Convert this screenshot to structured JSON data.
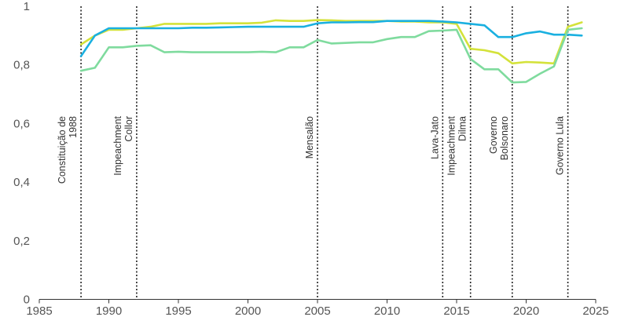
{
  "chart_data": {
    "type": "line",
    "title": "",
    "xlabel": "",
    "ylabel": "",
    "xlim": [
      1985,
      2025
    ],
    "ylim": [
      0,
      1
    ],
    "x_ticks": [
      1985,
      1990,
      1995,
      2000,
      2005,
      2010,
      2015,
      2020,
      2025
    ],
    "y_ticks": [
      0,
      0.2,
      0.4,
      0.6,
      0.8,
      1
    ],
    "x_tick_labels": [
      "1985",
      "1990",
      "1995",
      "2000",
      "2005",
      "2010",
      "2015",
      "2020",
      "2025"
    ],
    "y_tick_labels": [
      "0",
      "0,2",
      "0,4",
      "0,6",
      "0,8",
      "1"
    ],
    "grid": false,
    "legend": "none",
    "events": [
      {
        "x": 1988,
        "label": "Constituição de 1988"
      },
      {
        "x": 1992,
        "label": "Impeachment Collor"
      },
      {
        "x": 2005,
        "label": "Mensalão"
      },
      {
        "x": 2014,
        "label": "Lava-Jato"
      },
      {
        "x": 2016,
        "label": "Impeachment Dilma"
      },
      {
        "x": 2019,
        "label": "Governo Bolsonaro"
      },
      {
        "x": 2023,
        "label": "Governo Lula"
      }
    ],
    "series": [
      {
        "color": "#d4e23a",
        "x": [
          1988,
          1989,
          1990,
          1991,
          1992,
          1993,
          1994,
          1995,
          1996,
          1997,
          1998,
          1999,
          2000,
          2001,
          2002,
          2003,
          2004,
          2005,
          2006,
          2007,
          2008,
          2009,
          2010,
          2011,
          2012,
          2013,
          2014,
          2015,
          2016,
          2017,
          2018,
          2019,
          2020,
          2021,
          2022,
          2023,
          2024
        ],
        "values": [
          0.87,
          0.9,
          0.92,
          0.92,
          0.925,
          0.93,
          0.94,
          0.94,
          0.94,
          0.94,
          0.942,
          0.942,
          0.942,
          0.944,
          0.952,
          0.95,
          0.95,
          0.953,
          0.952,
          0.95,
          0.95,
          0.95,
          0.95,
          0.948,
          0.948,
          0.945,
          0.945,
          0.94,
          0.855,
          0.85,
          0.84,
          0.805,
          0.81,
          0.808,
          0.805,
          0.93,
          0.945
        ]
      },
      {
        "color": "#1ab0e0",
        "x": [
          1988,
          1989,
          1990,
          1991,
          1992,
          1993,
          1994,
          1995,
          1996,
          1997,
          1998,
          1999,
          2000,
          2001,
          2002,
          2003,
          2004,
          2005,
          2006,
          2007,
          2008,
          2009,
          2010,
          2011,
          2012,
          2013,
          2014,
          2015,
          2016,
          2017,
          2018,
          2019,
          2020,
          2021,
          2022,
          2023,
          2024
        ],
        "values": [
          0.83,
          0.9,
          0.925,
          0.925,
          0.925,
          0.925,
          0.925,
          0.925,
          0.927,
          0.927,
          0.928,
          0.929,
          0.93,
          0.93,
          0.93,
          0.93,
          0.93,
          0.942,
          0.945,
          0.945,
          0.946,
          0.946,
          0.95,
          0.95,
          0.95,
          0.95,
          0.948,
          0.945,
          0.94,
          0.935,
          0.895,
          0.895,
          0.908,
          0.914,
          0.903,
          0.903,
          0.9
        ]
      },
      {
        "color": "#7fdb9e",
        "x": [
          1988,
          1989,
          1990,
          1991,
          1992,
          1993,
          1994,
          1995,
          1996,
          1997,
          1998,
          1999,
          2000,
          2001,
          2002,
          2003,
          2004,
          2005,
          2006,
          2007,
          2008,
          2009,
          2010,
          2011,
          2012,
          2013,
          2014,
          2015,
          2016,
          2017,
          2018,
          2019,
          2020,
          2021,
          2022,
          2023,
          2024
        ],
        "values": [
          0.78,
          0.79,
          0.86,
          0.86,
          0.865,
          0.867,
          0.843,
          0.845,
          0.843,
          0.843,
          0.843,
          0.843,
          0.843,
          0.845,
          0.843,
          0.86,
          0.86,
          0.885,
          0.873,
          0.875,
          0.877,
          0.877,
          0.888,
          0.895,
          0.895,
          0.915,
          0.917,
          0.92,
          0.82,
          0.785,
          0.785,
          0.74,
          0.742,
          0.77,
          0.795,
          0.92,
          0.925
        ]
      }
    ]
  }
}
